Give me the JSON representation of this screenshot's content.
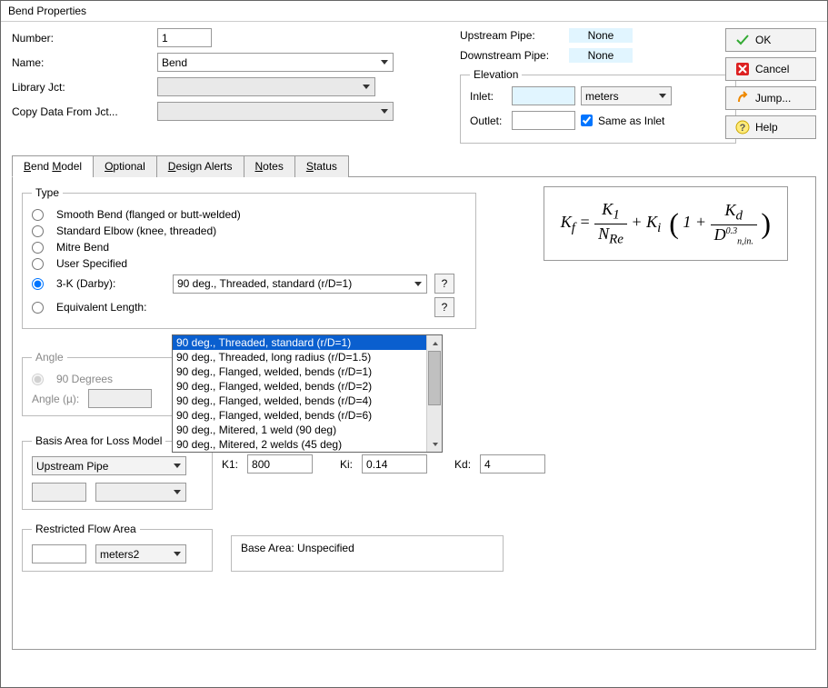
{
  "window": {
    "title": "Bend Properties"
  },
  "header": {
    "number_label": "Number:",
    "number_value": "1",
    "name_label": "Name:",
    "name_value": "Bend",
    "library_label": "Library Jct:",
    "copy_label": "Copy Data From Jct...",
    "upstream_label": "Upstream Pipe:",
    "upstream_value": "None",
    "downstream_label": "Downstream Pipe:",
    "downstream_value": "None",
    "elevation_legend": "Elevation",
    "inlet_label": "Inlet:",
    "inlet_value": "",
    "inlet_unit": "meters",
    "outlet_label": "Outlet:",
    "outlet_value": "",
    "same_as_inlet": "Same as Inlet",
    "same_checked": true
  },
  "buttons": {
    "ok": "OK",
    "cancel": "Cancel",
    "jump": "Jump...",
    "help": "Help"
  },
  "tabs": {
    "bend_model": "Bend Model",
    "optional": "Optional",
    "design_alerts": "Design Alerts",
    "notes": "Notes",
    "status": "Status"
  },
  "type": {
    "legend": "Type",
    "smooth": "Smooth Bend (flanged or butt-welded)",
    "standard": "Standard Elbow (knee, threaded)",
    "mitre": "Mitre Bend",
    "user": "User Specified",
    "threeK": "3-K (Darby):",
    "equiv": "Equivalent Length:",
    "selected_threeK": "90 deg., Threaded, standard (r/D=1)",
    "help_q": "?",
    "dropdown_items": [
      "90 deg., Threaded, standard (r/D=1)",
      "90 deg., Threaded, long radius (r/D=1.5)",
      "90 deg., Flanged, welded, bends (r/D=1)",
      "90 deg., Flanged, welded, bends (r/D=2)",
      "90 deg., Flanged, welded, bends (r/D=4)",
      "90 deg., Flanged, welded, bends (r/D=6)",
      "90 deg., Mitered, 1 weld (90 deg)",
      "90 deg., Mitered, 2 welds (45 deg)"
    ]
  },
  "angle": {
    "legend": "Angle",
    "ninety": "90 Degrees",
    "angle_mu": "Angle (µ):"
  },
  "basis": {
    "legend": "Basis Area for Loss Model",
    "selected": "Upstream Pipe",
    "k1_label": "K1:",
    "k1_value": "800",
    "ki_label": "Ki:",
    "ki_value": "0.14",
    "kd_label": "Kd:",
    "kd_value": "4"
  },
  "restricted": {
    "legend": "Restricted Flow Area",
    "unit": "meters2"
  },
  "base_area": "Base Area: Unspecified",
  "formula": {
    "Kf": "K",
    "f": "f",
    "eq": " = ",
    "K1": "K",
    "one": "1",
    "N": "N",
    "Re": "Re",
    "plus": " + ",
    "Ki": "K",
    "i": "i",
    "open": "(",
    "close": ")",
    "oneplus": "1 + ",
    "Kd": "K",
    "d": "d",
    "D": "D",
    "nin": "n,in.",
    "exp": "0.3"
  },
  "colors": {
    "accent_blue": "#0a5fcf",
    "readonly_bg": "#e1f5ff"
  }
}
